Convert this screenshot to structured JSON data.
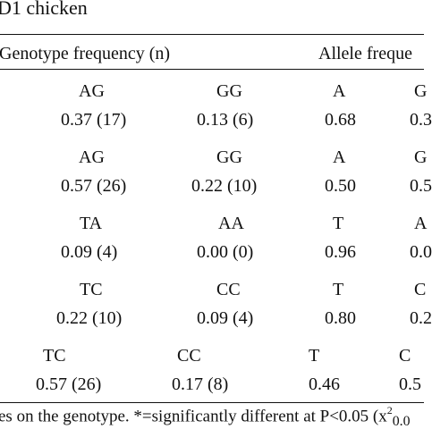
{
  "caption": "D1 chicken",
  "headers": {
    "genotype": "Genotype frequency (n)",
    "allele": "Allele freque"
  },
  "rows": [
    {
      "labels": [
        "AG",
        "GG",
        "A",
        "G"
      ],
      "values": [
        "0.37 (17)",
        "0.13 (6)",
        "0.68",
        "0.3"
      ]
    },
    {
      "labels": [
        "AG",
        "GG",
        "A",
        "G"
      ],
      "values": [
        "0.57 (26)",
        "0.22 (10)",
        "0.50",
        "0.5"
      ]
    },
    {
      "labels": [
        "TA",
        "AA",
        "T",
        "A"
      ],
      "values": [
        "0.09 (4)",
        "0.00 (0)",
        "0.96",
        "0.0"
      ]
    },
    {
      "labels": [
        "TC",
        "CC",
        "T",
        "C"
      ],
      "values": [
        "0.22 (10)",
        "0.09 (4)",
        "0.80",
        "0.2"
      ]
    },
    {
      "labels": [
        "TC",
        "CC",
        "T",
        "C"
      ],
      "values": [
        "0.57 (26)",
        "0.17 (8)",
        "0.46",
        "0.5"
      ]
    }
  ],
  "footnote": {
    "text": "es on the genotype. *=significantly different at P<0.05 (x",
    "sup": "2",
    "sub": "0.0"
  }
}
